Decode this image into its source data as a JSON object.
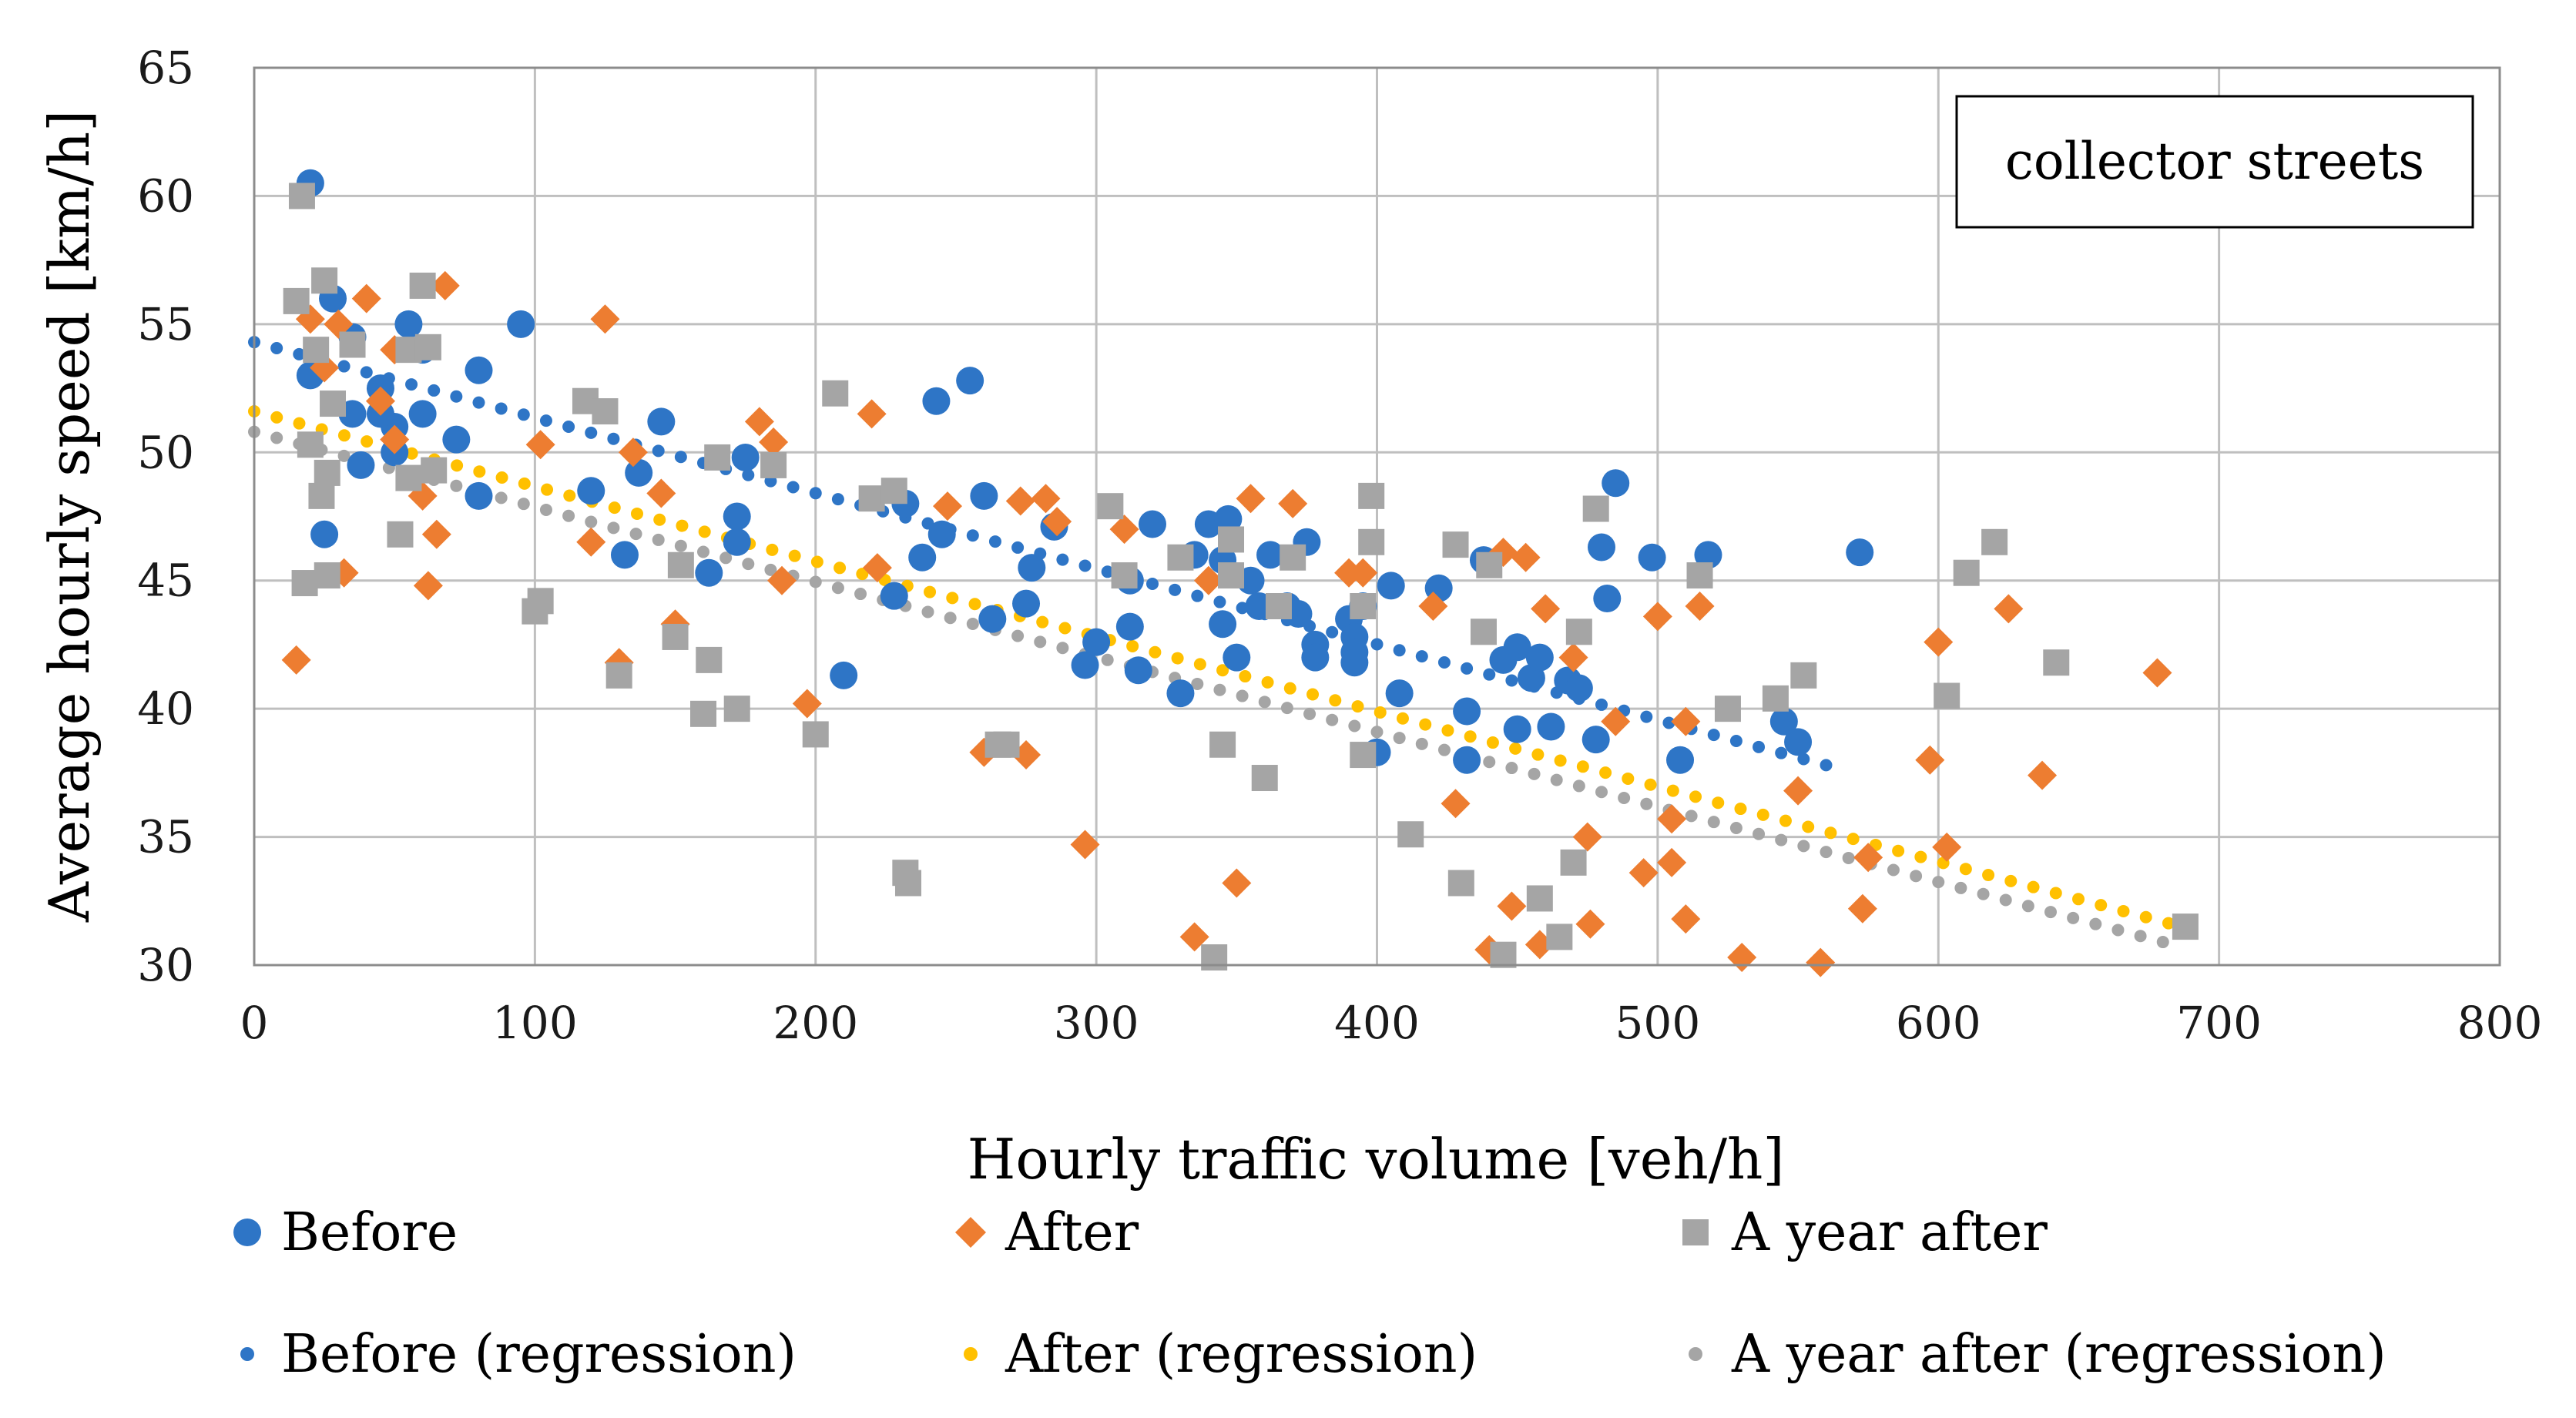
{
  "chart_data": {
    "type": "scatter",
    "annotation": "collector streets",
    "xlabel": "Hourly traffic volume [veh/h]",
    "ylabel": "Average hourly speed [km/h]",
    "xlim": [
      0,
      800
    ],
    "ylim": [
      30,
      65
    ],
    "xticks": [
      0,
      100,
      200,
      300,
      400,
      500,
      600,
      700,
      800
    ],
    "yticks": [
      30,
      35,
      40,
      45,
      50,
      55,
      60,
      65
    ],
    "xtick_labels": [
      "0",
      "100",
      "200",
      "300",
      "400",
      "500",
      "600",
      "700",
      "800"
    ],
    "ytick_labels": [
      "30",
      "35",
      "40",
      "45",
      "50",
      "55",
      "60",
      "65"
    ],
    "grid": true,
    "legend_position": "bottom",
    "colors": {
      "before": "#2e75c6",
      "after": "#ed7d31",
      "year_after": "#a5a5a5",
      "after_regression": "#ffc000"
    },
    "series": [
      {
        "name": "Before",
        "marker": "circle",
        "points": [
          [
            20,
            60.5
          ],
          [
            28,
            56
          ],
          [
            20,
            53
          ],
          [
            35,
            54.5
          ],
          [
            45,
            52.5
          ],
          [
            55,
            55
          ],
          [
            60,
            54
          ],
          [
            50,
            51
          ],
          [
            45,
            51.5
          ],
          [
            60,
            51.5
          ],
          [
            38,
            49.5
          ],
          [
            35,
            51.5
          ],
          [
            50,
            50
          ],
          [
            25,
            46.8
          ],
          [
            72,
            50.5
          ],
          [
            80,
            48.3
          ],
          [
            95,
            55
          ],
          [
            80,
            53.2
          ],
          [
            120,
            48.5
          ],
          [
            132,
            46
          ],
          [
            137,
            49.2
          ],
          [
            145,
            51.2
          ],
          [
            162,
            45.3
          ],
          [
            172,
            47.5
          ],
          [
            175,
            49.8
          ],
          [
            172,
            46.5
          ],
          [
            210,
            41.3
          ],
          [
            228,
            44.4
          ],
          [
            238,
            45.9
          ],
          [
            232,
            48
          ],
          [
            245,
            46.8
          ],
          [
            243,
            52
          ],
          [
            255,
            52.8
          ],
          [
            260,
            48.3
          ],
          [
            263,
            43.5
          ],
          [
            277,
            45.5
          ],
          [
            275,
            44.1
          ],
          [
            285,
            47.1
          ],
          [
            296,
            41.7
          ],
          [
            300,
            42.6
          ],
          [
            312,
            43.2
          ],
          [
            312,
            45
          ],
          [
            315,
            41.5
          ],
          [
            320,
            47.2
          ],
          [
            330,
            40.6
          ],
          [
            335,
            46
          ],
          [
            340,
            47.2
          ],
          [
            345,
            45.8
          ],
          [
            347,
            47.4
          ],
          [
            345,
            43.3
          ],
          [
            350,
            42
          ],
          [
            355,
            45
          ],
          [
            358,
            44
          ],
          [
            362,
            46
          ],
          [
            368,
            44
          ],
          [
            372,
            43.7
          ],
          [
            375,
            46.5
          ],
          [
            378,
            42.5
          ],
          [
            378,
            42
          ],
          [
            390,
            43.5
          ],
          [
            392,
            42.8
          ],
          [
            392,
            42.2
          ],
          [
            392,
            41.8
          ],
          [
            395,
            44
          ],
          [
            400,
            38.3
          ],
          [
            408,
            40.6
          ],
          [
            405,
            44.8
          ],
          [
            422,
            44.7
          ],
          [
            432,
            39.9
          ],
          [
            432,
            38
          ],
          [
            438,
            45.8
          ],
          [
            445,
            41.9
          ],
          [
            450,
            42.4
          ],
          [
            450,
            39.2
          ],
          [
            455,
            41.2
          ],
          [
            458,
            42
          ],
          [
            462,
            39.3
          ],
          [
            468,
            41.1
          ],
          [
            472,
            40.8
          ],
          [
            478,
            38.8
          ],
          [
            480,
            46.3
          ],
          [
            482,
            44.3
          ],
          [
            485,
            48.8
          ],
          [
            498,
            45.9
          ],
          [
            508,
            38
          ],
          [
            518,
            46
          ],
          [
            545,
            39.5
          ],
          [
            550,
            38.7
          ],
          [
            572,
            46.1
          ]
        ]
      },
      {
        "name": "After",
        "marker": "diamond",
        "points": [
          [
            15,
            41.9
          ],
          [
            20,
            55.2
          ],
          [
            25,
            53.3
          ],
          [
            30,
            55
          ],
          [
            32,
            45.3
          ],
          [
            40,
            56
          ],
          [
            45,
            52
          ],
          [
            50,
            54
          ],
          [
            50,
            50.5
          ],
          [
            60,
            48.3
          ],
          [
            62,
            44.8
          ],
          [
            65,
            46.8
          ],
          [
            68,
            56.5
          ],
          [
            102,
            50.3
          ],
          [
            120,
            46.5
          ],
          [
            125,
            55.2
          ],
          [
            130,
            41.8
          ],
          [
            135,
            50
          ],
          [
            145,
            48.4
          ],
          [
            150,
            43.3
          ],
          [
            180,
            51.2
          ],
          [
            185,
            50.4
          ],
          [
            188,
            45
          ],
          [
            197,
            40.2
          ],
          [
            220,
            51.5
          ],
          [
            222,
            45.5
          ],
          [
            247,
            47.9
          ],
          [
            260,
            38.3
          ],
          [
            273,
            48.1
          ],
          [
            275,
            38.2
          ],
          [
            282,
            48.2
          ],
          [
            286,
            47.3
          ],
          [
            296,
            34.7
          ],
          [
            310,
            47
          ],
          [
            335,
            31.1
          ],
          [
            340,
            45
          ],
          [
            350,
            33.2
          ],
          [
            355,
            48.2
          ],
          [
            370,
            48
          ],
          [
            390,
            45.3
          ],
          [
            395,
            45.3
          ],
          [
            420,
            44
          ],
          [
            428,
            36.3
          ],
          [
            440,
            30.6
          ],
          [
            445,
            46.1
          ],
          [
            448,
            32.3
          ],
          [
            453,
            45.9
          ],
          [
            458,
            30.8
          ],
          [
            460,
            43.9
          ],
          [
            470,
            42
          ],
          [
            475,
            35
          ],
          [
            476,
            31.6
          ],
          [
            485,
            39.5
          ],
          [
            495,
            33.6
          ],
          [
            500,
            43.6
          ],
          [
            505,
            34
          ],
          [
            505,
            35.7
          ],
          [
            510,
            39.5
          ],
          [
            510,
            31.8
          ],
          [
            515,
            44
          ],
          [
            530,
            30.3
          ],
          [
            550,
            36.8
          ],
          [
            558,
            30.1
          ],
          [
            573,
            32.2
          ],
          [
            575,
            34.2
          ],
          [
            597,
            38
          ],
          [
            600,
            42.6
          ],
          [
            603,
            34.6
          ],
          [
            625,
            43.9
          ],
          [
            637,
            37.4
          ],
          [
            678,
            41.4
          ]
        ]
      },
      {
        "name": "A year after",
        "marker": "square",
        "points": [
          [
            15,
            55.9
          ],
          [
            17,
            60
          ],
          [
            18,
            44.9
          ],
          [
            20,
            50.3
          ],
          [
            22,
            54
          ],
          [
            24,
            48.3
          ],
          [
            25,
            56.7
          ],
          [
            26,
            49.2
          ],
          [
            28,
            51.9
          ],
          [
            26,
            45.2
          ],
          [
            35,
            54.2
          ],
          [
            52,
            46.8
          ],
          [
            55,
            49
          ],
          [
            55,
            54
          ],
          [
            60,
            56.5
          ],
          [
            62,
            54.1
          ],
          [
            64,
            49.3
          ],
          [
            118,
            52
          ],
          [
            125,
            51.6
          ],
          [
            100,
            43.8
          ],
          [
            102,
            44.2
          ],
          [
            130,
            41.3
          ],
          [
            150,
            42.8
          ],
          [
            152,
            45.6
          ],
          [
            160,
            39.8
          ],
          [
            162,
            41.9
          ],
          [
            165,
            49.8
          ],
          [
            172,
            40
          ],
          [
            185,
            49.5
          ],
          [
            200,
            39
          ],
          [
            207,
            52.3
          ],
          [
            220,
            48.2
          ],
          [
            228,
            48.5
          ],
          [
            232,
            33.6
          ],
          [
            233,
            33.2
          ],
          [
            265,
            38.6
          ],
          [
            268,
            38.6
          ],
          [
            305,
            47.9
          ],
          [
            310,
            45.2
          ],
          [
            330,
            45.9
          ],
          [
            342,
            30.3
          ],
          [
            345,
            38.6
          ],
          [
            348,
            46.6
          ],
          [
            348,
            45.2
          ],
          [
            360,
            37.3
          ],
          [
            365,
            44
          ],
          [
            370,
            45.9
          ],
          [
            395,
            38.2
          ],
          [
            395,
            44
          ],
          [
            398,
            46.5
          ],
          [
            398,
            48.3
          ],
          [
            412,
            35.1
          ],
          [
            428,
            46.4
          ],
          [
            430,
            33.2
          ],
          [
            438,
            43
          ],
          [
            440,
            45.6
          ],
          [
            445,
            30.4
          ],
          [
            458,
            32.6
          ],
          [
            465,
            31.1
          ],
          [
            470,
            34
          ],
          [
            472,
            43
          ],
          [
            478,
            47.8
          ],
          [
            515,
            45.2
          ],
          [
            525,
            40
          ],
          [
            542,
            40.4
          ],
          [
            552,
            41.3
          ],
          [
            603,
            40.5
          ],
          [
            610,
            45.3
          ],
          [
            620,
            46.5
          ],
          [
            642,
            41.8
          ],
          [
            688,
            31.5
          ]
        ]
      }
    ],
    "regressions": [
      {
        "name": "Before (regression)",
        "x": [
          0,
          560
        ],
        "y": [
          54.3,
          37.8
        ]
      },
      {
        "name": "After (regression)",
        "x": [
          0,
          690
        ],
        "y": [
          51.6,
          31.4
        ]
      },
      {
        "name": "A year after (regression)",
        "x": [
          0,
          680
        ],
        "y": [
          50.8,
          30.9
        ]
      }
    ]
  }
}
